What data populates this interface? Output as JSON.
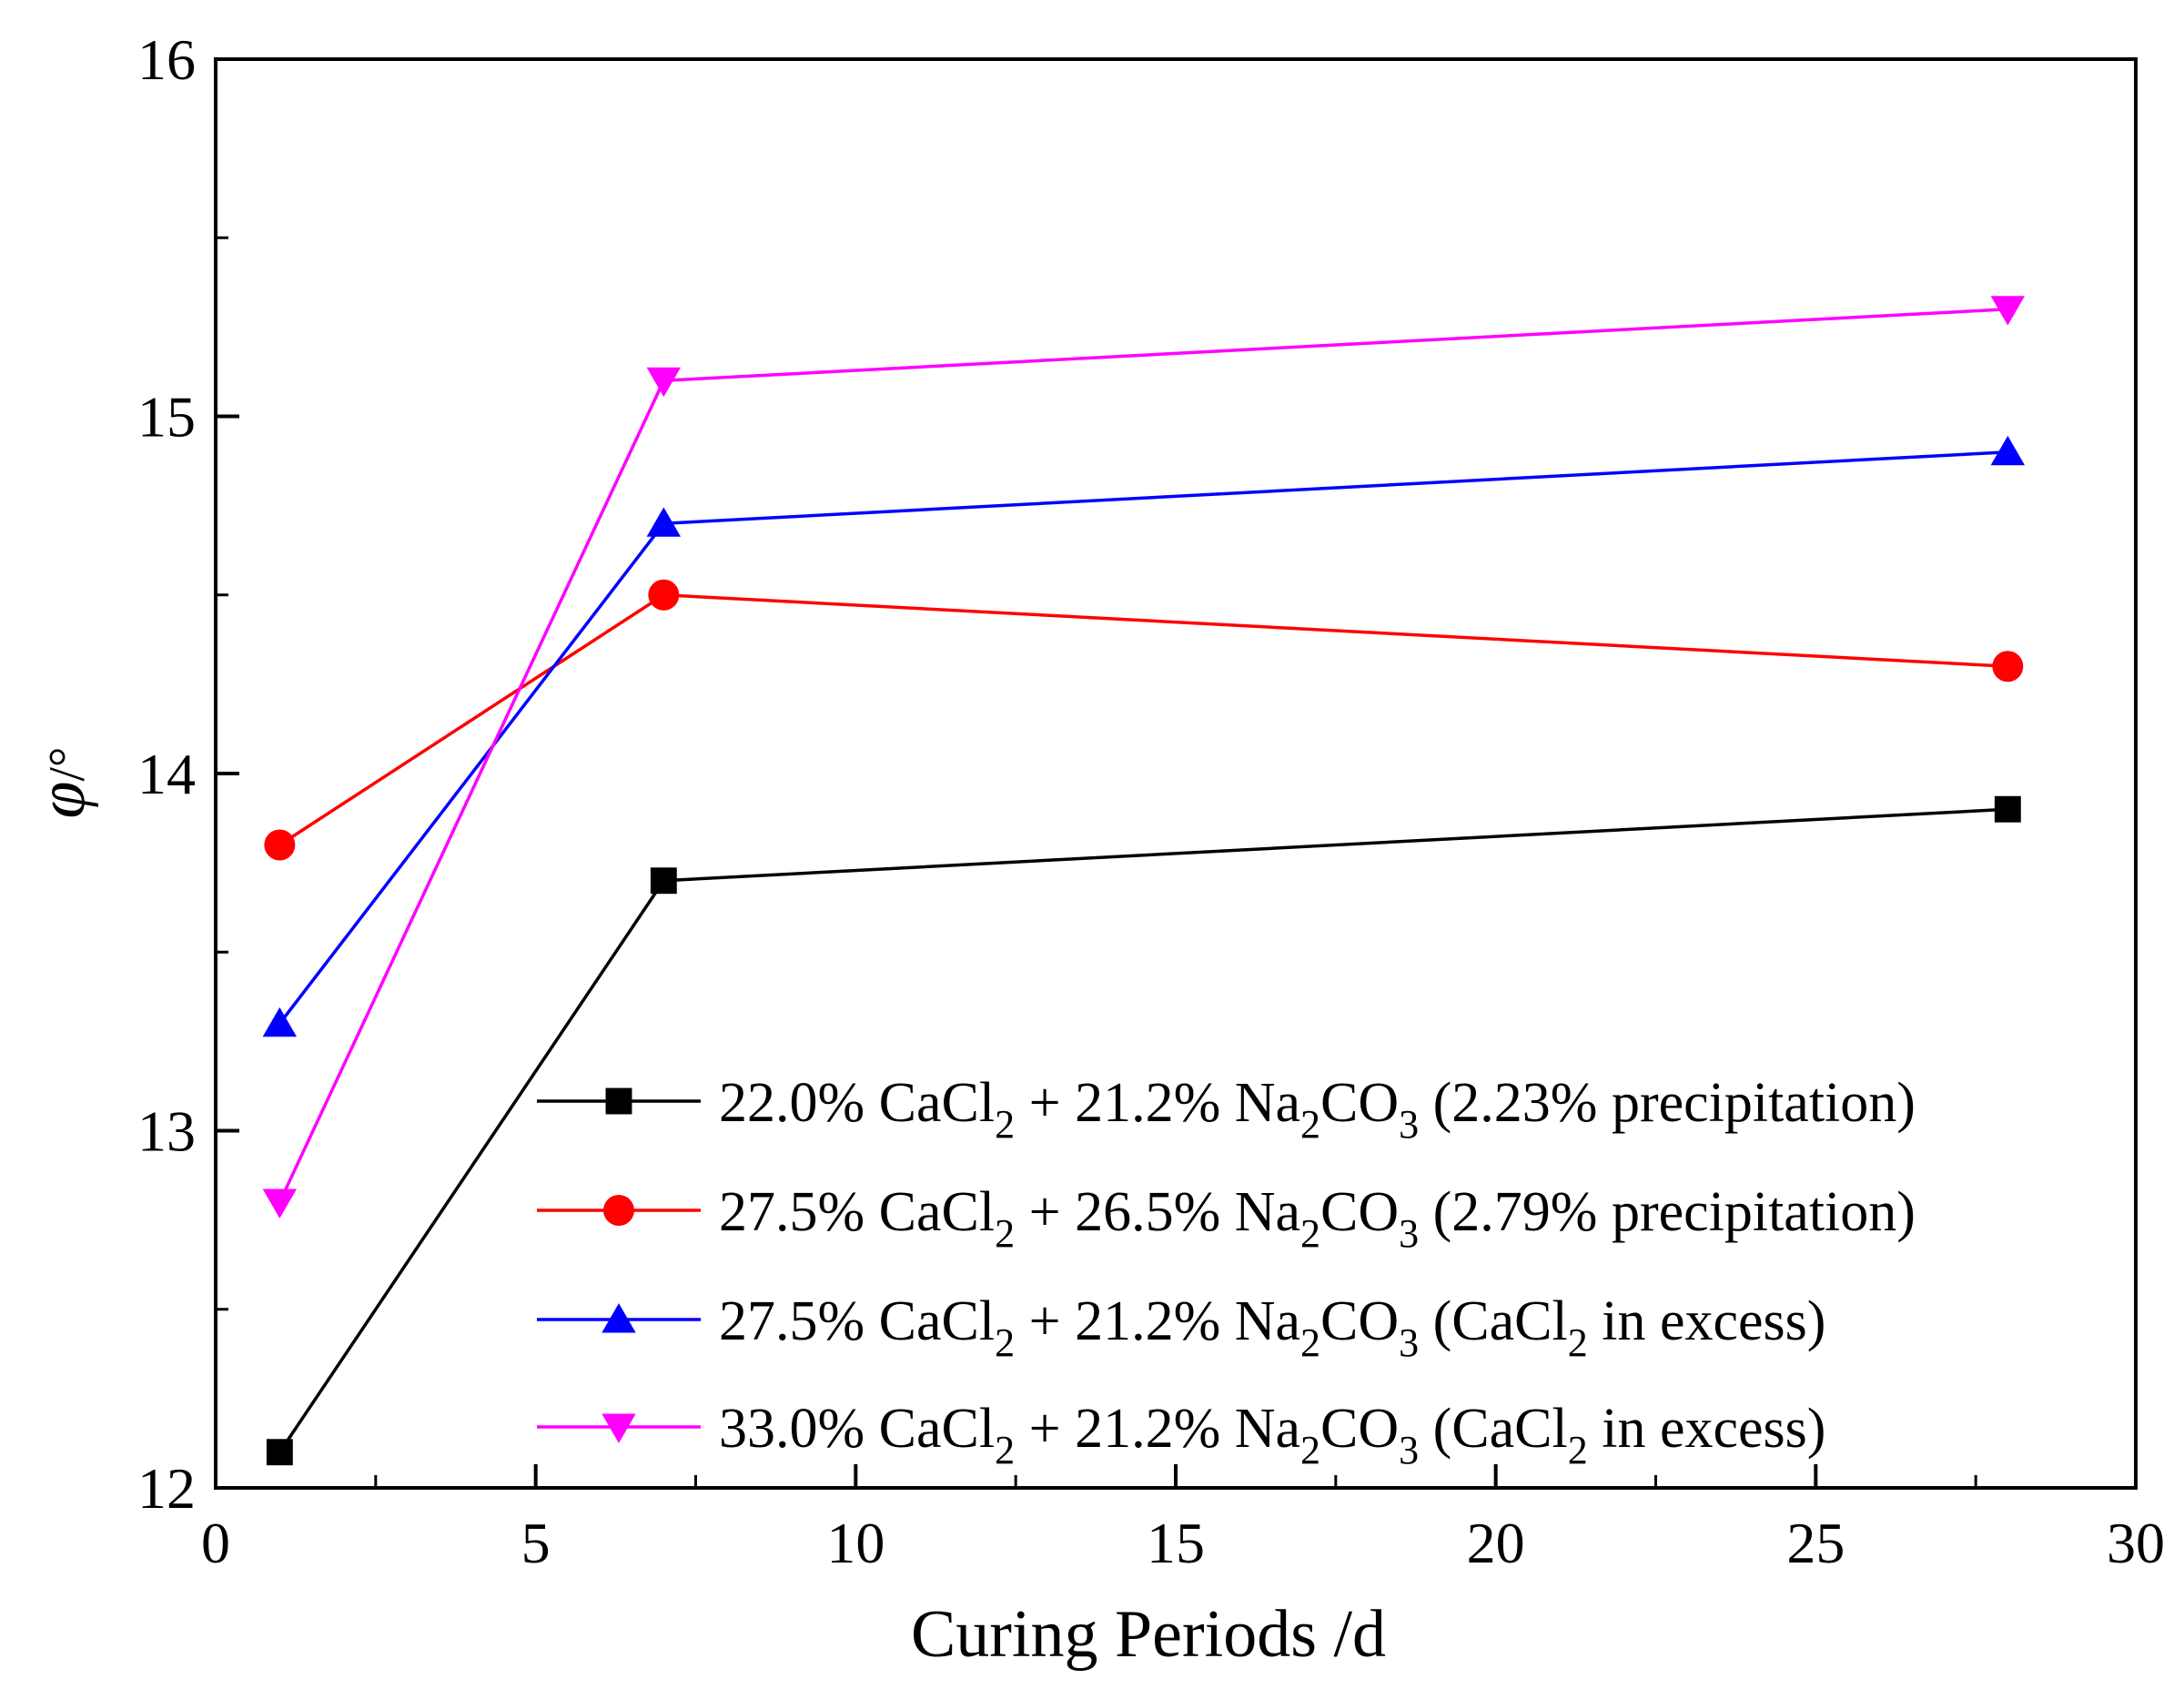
{
  "chart_data": {
    "type": "line",
    "title": "",
    "xlabel": "Curing Periods /d",
    "ylabel_symbol": "φ",
    "ylabel_unit": "/°",
    "xlim": [
      0,
      30
    ],
    "ylim": [
      12,
      16
    ],
    "xticks": [
      0,
      5,
      10,
      15,
      20,
      25,
      30
    ],
    "yticks": [
      12,
      13,
      14,
      15,
      16
    ],
    "legend_position": "lower-right",
    "x": [
      1,
      7,
      28
    ],
    "series": [
      {
        "name": "22.0% CaCl2 + 21.2% Na2CO3 (2.23% precipitation)",
        "label_parts": {
          "p1": "22.0% CaCl",
          "s1": "2",
          "p2": " + 21.2% Na",
          "s2": "2",
          "p3": "CO",
          "s3": "3",
          "p4": " (2.23% precipitation)"
        },
        "color": "#000000",
        "marker": "square",
        "values": [
          12.1,
          13.7,
          13.9
        ]
      },
      {
        "name": "27.5% CaCl2 + 26.5% Na2CO3 (2.79% precipitation)",
        "label_parts": {
          "p1": "27.5% CaCl",
          "s1": "2",
          "p2": " + 26.5% Na",
          "s2": "2",
          "p3": "CO",
          "s3": "3",
          "p4": " (2.79% precipitation)"
        },
        "color": "#ff0000",
        "marker": "circle",
        "values": [
          13.8,
          14.5,
          14.3
        ]
      },
      {
        "name": "27.5% CaCl2 + 21.2% Na2CO3 (CaCl2 in excess)",
        "label_parts": {
          "p1": "27.5% CaCl",
          "s1": "2",
          "p2": " + 21.2% Na",
          "s2": "2",
          "p3": "CO",
          "s3": "3",
          "p4": " (CaCl",
          "s4": "2",
          "p5": " in excess)"
        },
        "color": "#0000ff",
        "marker": "triangle-up",
        "values": [
          13.3,
          14.7,
          14.9
        ]
      },
      {
        "name": "33.0% CaCl2 + 21.2% Na2CO3 (CaCl2 in excess)",
        "label_parts": {
          "p1": "33.0% CaCl",
          "s1": "2",
          "p2": " + 21.2% Na",
          "s2": "2",
          "p3": "CO",
          "s3": "3",
          "p4": " (CaCl",
          "s4": "2",
          "p5": " in excess)"
        },
        "color": "#ff00ff",
        "marker": "triangle-down",
        "values": [
          12.8,
          15.1,
          15.3
        ]
      }
    ]
  }
}
